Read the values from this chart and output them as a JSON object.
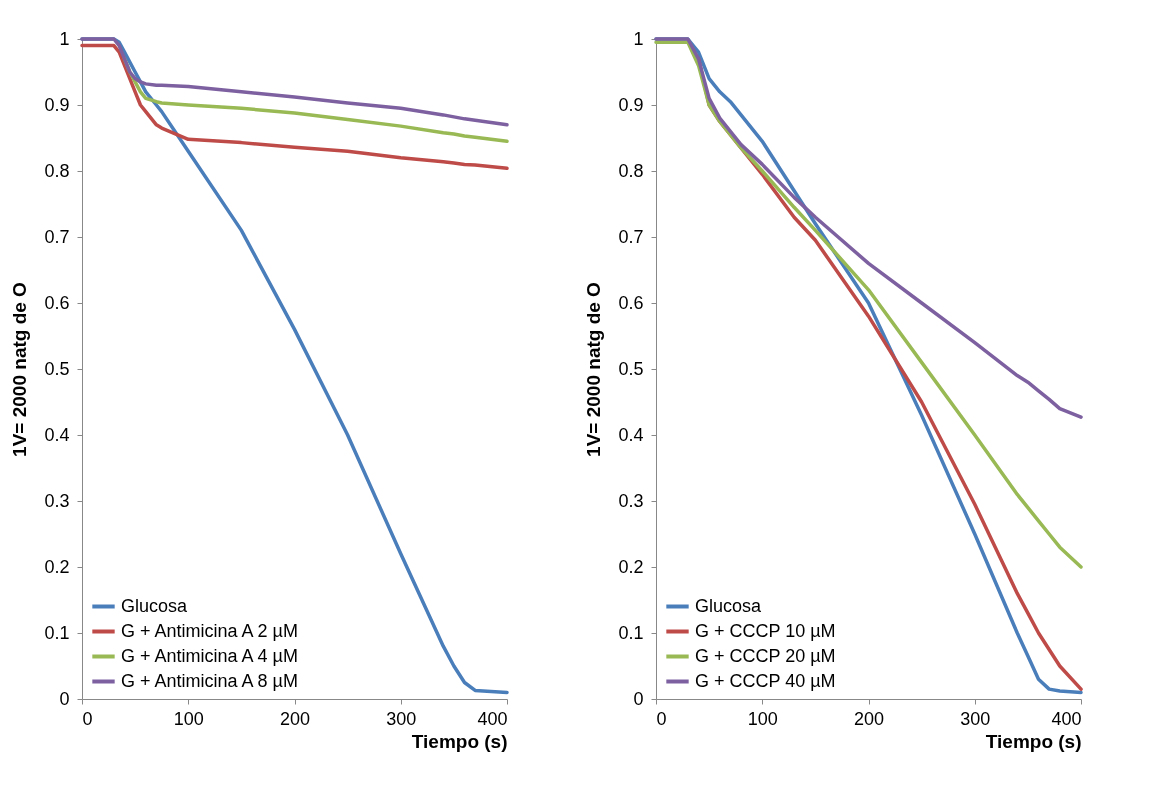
{
  "chart_data": [
    {
      "type": "line",
      "xlabel": "Tiempo (s)",
      "ylabel": "1V= 2000 natg de O",
      "x": [
        0,
        30,
        35,
        40,
        45,
        50,
        55,
        60,
        70,
        75,
        100,
        150,
        200,
        250,
        300,
        340,
        350,
        360,
        370,
        400
      ],
      "xlim": [
        0,
        400
      ],
      "xticks": [
        0,
        100,
        200,
        300,
        400
      ],
      "ylim": [
        0,
        1
      ],
      "yticks": [
        0,
        0.1,
        0.2,
        0.3,
        0.4,
        0.5,
        0.6,
        0.7,
        0.8,
        0.9,
        1
      ],
      "legend": "bottom left",
      "series": [
        {
          "name": "Glucosa",
          "color": "#4a7ebb",
          "values": [
            1,
            1,
            0.995,
            0.98,
            0.965,
            0.95,
            0.935,
            0.92,
            0.9,
            0.89,
            0.83,
            0.71,
            0.56,
            0.4,
            0.22,
            0.08,
            0.05,
            0.025,
            0.013,
            0.01
          ]
        },
        {
          "name": "G + Antimicina A 2 µM",
          "color": "#be4b48",
          "values": [
            0.99,
            0.99,
            0.98,
            0.96,
            0.94,
            0.92,
            0.9,
            0.89,
            0.87,
            0.865,
            0.848,
            0.843,
            0.836,
            0.83,
            0.82,
            0.814,
            0.812,
            0.81,
            0.809,
            0.804
          ]
        },
        {
          "name": "G + Antimicina A 4 µM",
          "color": "#98b954",
          "values": [
            null,
            null,
            null,
            0.97,
            0.95,
            0.935,
            0.92,
            0.91,
            0.905,
            0.903,
            0.9,
            0.895,
            0.888,
            0.878,
            0.868,
            0.858,
            0.856,
            0.853,
            0.851,
            0.845
          ]
        },
        {
          "name": "G + Antimicina A 8 µM",
          "color": "#7d60a0",
          "values": [
            1,
            1,
            0.99,
            0.97,
            0.95,
            0.94,
            0.935,
            0.932,
            0.93,
            0.93,
            0.928,
            0.92,
            0.912,
            0.903,
            0.895,
            0.885,
            0.882,
            0.879,
            0.877,
            0.87
          ]
        }
      ]
    },
    {
      "type": "line",
      "xlabel": "Tiempo (s)",
      "ylabel": "1V= 2000 natg de O",
      "x": [
        0,
        30,
        40,
        50,
        60,
        70,
        80,
        100,
        130,
        150,
        200,
        250,
        300,
        340,
        350,
        360,
        370,
        380,
        400
      ],
      "xlim": [
        0,
        400
      ],
      "xticks": [
        0,
        100,
        200,
        300,
        400
      ],
      "ylim": [
        0,
        1
      ],
      "yticks": [
        0,
        0.1,
        0.2,
        0.3,
        0.4,
        0.5,
        0.6,
        0.7,
        0.8,
        0.9,
        1
      ],
      "legend": "bottom left",
      "series": [
        {
          "name": "Glucosa",
          "color": "#4a7ebb",
          "values": [
            1,
            1,
            0.98,
            0.94,
            0.92,
            0.905,
            0.885,
            0.845,
            0.77,
            0.72,
            0.6,
            0.43,
            0.25,
            0.1,
            0.065,
            0.03,
            0.015,
            0.012,
            0.01
          ]
        },
        {
          "name": "G + CCCP  10 µM",
          "color": "#be4b48",
          "values": [
            null,
            null,
            0.97,
            0.9,
            0.875,
            0.855,
            0.835,
            0.795,
            0.73,
            0.695,
            0.58,
            0.45,
            0.295,
            0.16,
            0.13,
            0.1,
            0.075,
            0.05,
            0.015
          ]
        },
        {
          "name": "G + CCCP  20 µM",
          "color": "#98b954",
          "values": [
            0.995,
            0.995,
            0.96,
            0.9,
            0.875,
            0.855,
            0.835,
            0.8,
            0.745,
            0.71,
            0.62,
            0.51,
            0.4,
            0.31,
            0.29,
            0.27,
            0.25,
            0.23,
            0.2
          ]
        },
        {
          "name": "G +  CCCP 40 µM",
          "color": "#7d60a0",
          "values": [
            1,
            1,
            0.97,
            0.91,
            0.88,
            0.86,
            0.84,
            0.81,
            0.76,
            0.73,
            0.66,
            0.6,
            0.54,
            0.49,
            0.48,
            0.467,
            0.454,
            0.44,
            0.427
          ]
        }
      ]
    }
  ]
}
